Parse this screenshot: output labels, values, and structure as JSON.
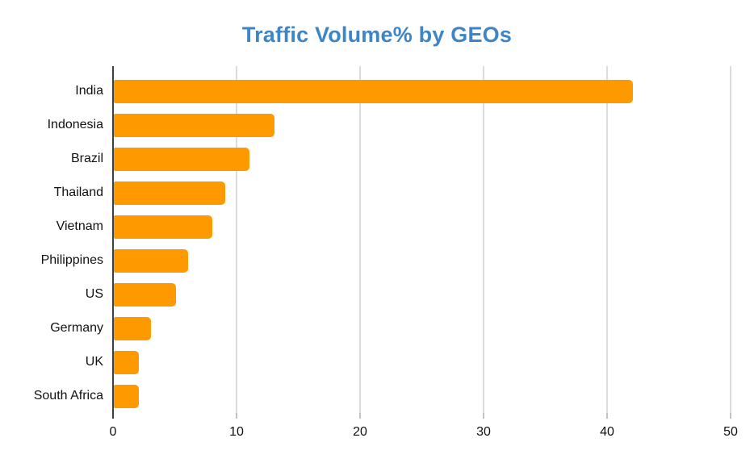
{
  "chart_data": {
    "type": "bar",
    "orientation": "horizontal",
    "title": "Traffic Volume% by GEOs",
    "categories": [
      "India",
      "Indonesia",
      "Brazil",
      "Thailand",
      "Vietnam",
      "Philippines",
      "US",
      "Germany",
      "UK",
      "South Africa"
    ],
    "values": [
      42,
      13,
      11,
      9,
      8,
      6,
      5,
      3,
      2,
      2
    ],
    "xlabel": "",
    "ylabel": "",
    "xlim": [
      0,
      50
    ],
    "xticks": [
      0,
      10,
      20,
      30,
      40,
      50
    ],
    "grid": true,
    "legend": false,
    "colors": {
      "bar": "#ff9900",
      "title": "#3d85c6",
      "axis_line": "#3c4043",
      "gridline": "#dcdcdc",
      "tick_mark": "#c2c2c2",
      "label_text": "#111111",
      "background": "#ffffff"
    }
  }
}
